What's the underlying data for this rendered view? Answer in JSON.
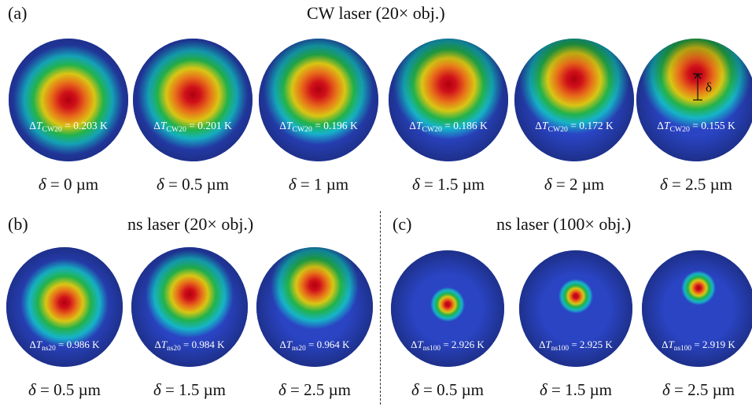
{
  "panel_a": {
    "label": "(a)",
    "title": "CW laser (20× obj.)",
    "items": [
      {
        "subscript": "CW20",
        "value": "0.203 K",
        "delta": "0 µm",
        "offset_um": 0
      },
      {
        "subscript": "CW20",
        "value": "0.201 K",
        "delta": "0.5 µm",
        "offset_um": 0.5
      },
      {
        "subscript": "CW20",
        "value": "0.196 K",
        "delta": "1 µm",
        "offset_um": 1
      },
      {
        "subscript": "CW20",
        "value": "0.186 K",
        "delta": "1.5 µm",
        "offset_um": 1.5
      },
      {
        "subscript": "CW20",
        "value": "0.172 K",
        "delta": "2 µm",
        "offset_um": 2
      },
      {
        "subscript": "CW20",
        "value": "0.155 K",
        "delta": "2.5 µm",
        "offset_um": 2.5
      }
    ]
  },
  "panel_b": {
    "label": "(b)",
    "title": "ns laser (20× obj.)",
    "items": [
      {
        "subscript": "ns20",
        "value": "0.986 K",
        "delta": "0.5 µm",
        "offset_um": 0.5
      },
      {
        "subscript": "ns20",
        "value": "0.984 K",
        "delta": "1.5 µm",
        "offset_um": 1.5
      },
      {
        "subscript": "ns20",
        "value": "0.964 K",
        "delta": "2.5 µm",
        "offset_um": 2.5
      }
    ]
  },
  "panel_c": {
    "label": "(c)",
    "title": "ns laser (100× obj.)",
    "items": [
      {
        "subscript": "ns100",
        "value": "2.926 K",
        "delta": "0.5 µm",
        "offset_um": 0.5
      },
      {
        "subscript": "ns100",
        "value": "2.925 K",
        "delta": "1.5 µm",
        "offset_um": 1.5
      },
      {
        "subscript": "ns100",
        "value": "2.919 K",
        "delta": "2.5 µm",
        "offset_um": 2.5
      }
    ]
  },
  "symbols": {
    "delta_T": "ΔT",
    "delta": "δ",
    "equals": " = "
  },
  "colors": {
    "disc_edge": "#1c2fa8",
    "cool": "#2a44c4",
    "mid_cyan": "#16b4c8",
    "mid_green": "#22b24a",
    "warm_yellow": "#d9c614",
    "warm_orange": "#e8701a",
    "hot": "#d0101a",
    "core": "#b00010"
  }
}
